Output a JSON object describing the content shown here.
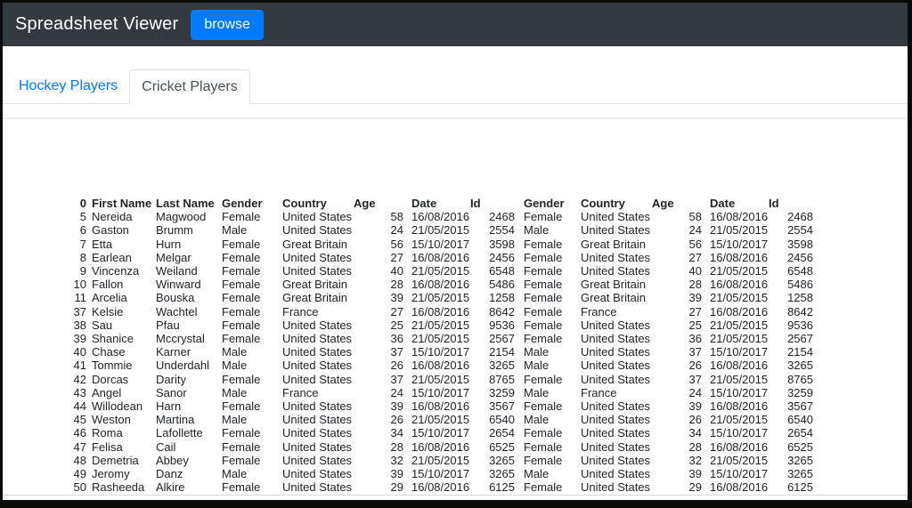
{
  "colors": {
    "frame": "#0a0a0a",
    "navbar_bg": "#343a40",
    "accent": "#007bff",
    "tab_border": "#dee2e6",
    "active_tab_text": "#495057",
    "table_text": "#212529"
  },
  "navbar": {
    "title": "Spreadsheet Viewer",
    "browse_button_label": "browse"
  },
  "tabs": {
    "items": [
      {
        "label": "Hockey Players",
        "active": false
      },
      {
        "label": "Cricket Players",
        "active": true
      }
    ]
  },
  "sheet": {
    "columns": [
      "0",
      "First Name",
      "Last Name",
      "Gender",
      "Country",
      "Age",
      "Date",
      "Id",
      "Gender",
      "Country",
      "Age",
      "Date",
      "Id"
    ],
    "rows": [
      [
        "5",
        "Nereida",
        "Magwood",
        "Female",
        "United States",
        "58",
        "16/08/2016",
        "2468",
        "Female",
        "United States",
        "58",
        "16/08/2016",
        "2468"
      ],
      [
        "6",
        "Gaston",
        "Brumm",
        "Male",
        "United States",
        "24",
        "21/05/2015",
        "2554",
        "Male",
        "United States",
        "24",
        "21/05/2015",
        "2554"
      ],
      [
        "7",
        "Etta",
        "Hurn",
        "Female",
        "Great Britain",
        "56",
        "15/10/2017",
        "3598",
        "Female",
        "Great Britain",
        "56",
        "15/10/2017",
        "3598"
      ],
      [
        "8",
        "Earlean",
        "Melgar",
        "Female",
        "United States",
        "27",
        "16/08/2016",
        "2456",
        "Female",
        "United States",
        "27",
        "16/08/2016",
        "2456"
      ],
      [
        "9",
        "Vincenza",
        "Weiland",
        "Female",
        "United States",
        "40",
        "21/05/2015",
        "6548",
        "Female",
        "United States",
        "40",
        "21/05/2015",
        "6548"
      ],
      [
        "10",
        "Fallon",
        "Winward",
        "Female",
        "Great Britain",
        "28",
        "16/08/2016",
        "5486",
        "Female",
        "Great Britain",
        "28",
        "16/08/2016",
        "5486"
      ],
      [
        "11",
        "Arcelia",
        "Bouska",
        "Female",
        "Great Britain",
        "39",
        "21/05/2015",
        "1258",
        "Female",
        "Great Britain",
        "39",
        "21/05/2015",
        "1258"
      ],
      [
        "37",
        "Kelsie",
        "Wachtel",
        "Female",
        "France",
        "27",
        "16/08/2016",
        "8642",
        "Female",
        "France",
        "27",
        "16/08/2016",
        "8642"
      ],
      [
        "38",
        "Sau",
        "Pfau",
        "Female",
        "United States",
        "25",
        "21/05/2015",
        "9536",
        "Female",
        "United States",
        "25",
        "21/05/2015",
        "9536"
      ],
      [
        "39",
        "Shanice",
        "Mccrystal",
        "Female",
        "United States",
        "36",
        "21/05/2015",
        "2567",
        "Female",
        "United States",
        "36",
        "21/05/2015",
        "2567"
      ],
      [
        "40",
        "Chase",
        "Karner",
        "Male",
        "United States",
        "37",
        "15/10/2017",
        "2154",
        "Male",
        "United States",
        "37",
        "15/10/2017",
        "2154"
      ],
      [
        "41",
        "Tommie",
        "Underdahl",
        "Male",
        "United States",
        "26",
        "16/08/2016",
        "3265",
        "Male",
        "United States",
        "26",
        "16/08/2016",
        "3265"
      ],
      [
        "42",
        "Dorcas",
        "Darity",
        "Female",
        "United States",
        "37",
        "21/05/2015",
        "8765",
        "Female",
        "United States",
        "37",
        "21/05/2015",
        "8765"
      ],
      [
        "43",
        "Angel",
        "Sanor",
        "Male",
        "France",
        "24",
        "15/10/2017",
        "3259",
        "Male",
        "France",
        "24",
        "15/10/2017",
        "3259"
      ],
      [
        "44",
        "Willodean",
        "Harn",
        "Female",
        "United States",
        "39",
        "16/08/2016",
        "3567",
        "Female",
        "United States",
        "39",
        "16/08/2016",
        "3567"
      ],
      [
        "45",
        "Weston",
        "Martina",
        "Male",
        "United States",
        "26",
        "21/05/2015",
        "6540",
        "Male",
        "United States",
        "26",
        "21/05/2015",
        "6540"
      ],
      [
        "46",
        "Roma",
        "Lafollette",
        "Female",
        "United States",
        "34",
        "15/10/2017",
        "2654",
        "Female",
        "United States",
        "34",
        "15/10/2017",
        "2654"
      ],
      [
        "47",
        "Felisa",
        "Cail",
        "Female",
        "United States",
        "28",
        "16/08/2016",
        "6525",
        "Female",
        "United States",
        "28",
        "16/08/2016",
        "6525"
      ],
      [
        "48",
        "Demetria",
        "Abbey",
        "Female",
        "United States",
        "32",
        "21/05/2015",
        "3265",
        "Female",
        "United States",
        "32",
        "21/05/2015",
        "3265"
      ],
      [
        "49",
        "Jeromy",
        "Danz",
        "Male",
        "United States",
        "39",
        "15/10/2017",
        "3265",
        "Male",
        "United States",
        "39",
        "15/10/2017",
        "3265"
      ],
      [
        "50",
        "Rasheeda",
        "Alkire",
        "Female",
        "United States",
        "29",
        "16/08/2016",
        "6125",
        "Female",
        "United States",
        "29",
        "16/08/2016",
        "6125"
      ]
    ]
  }
}
